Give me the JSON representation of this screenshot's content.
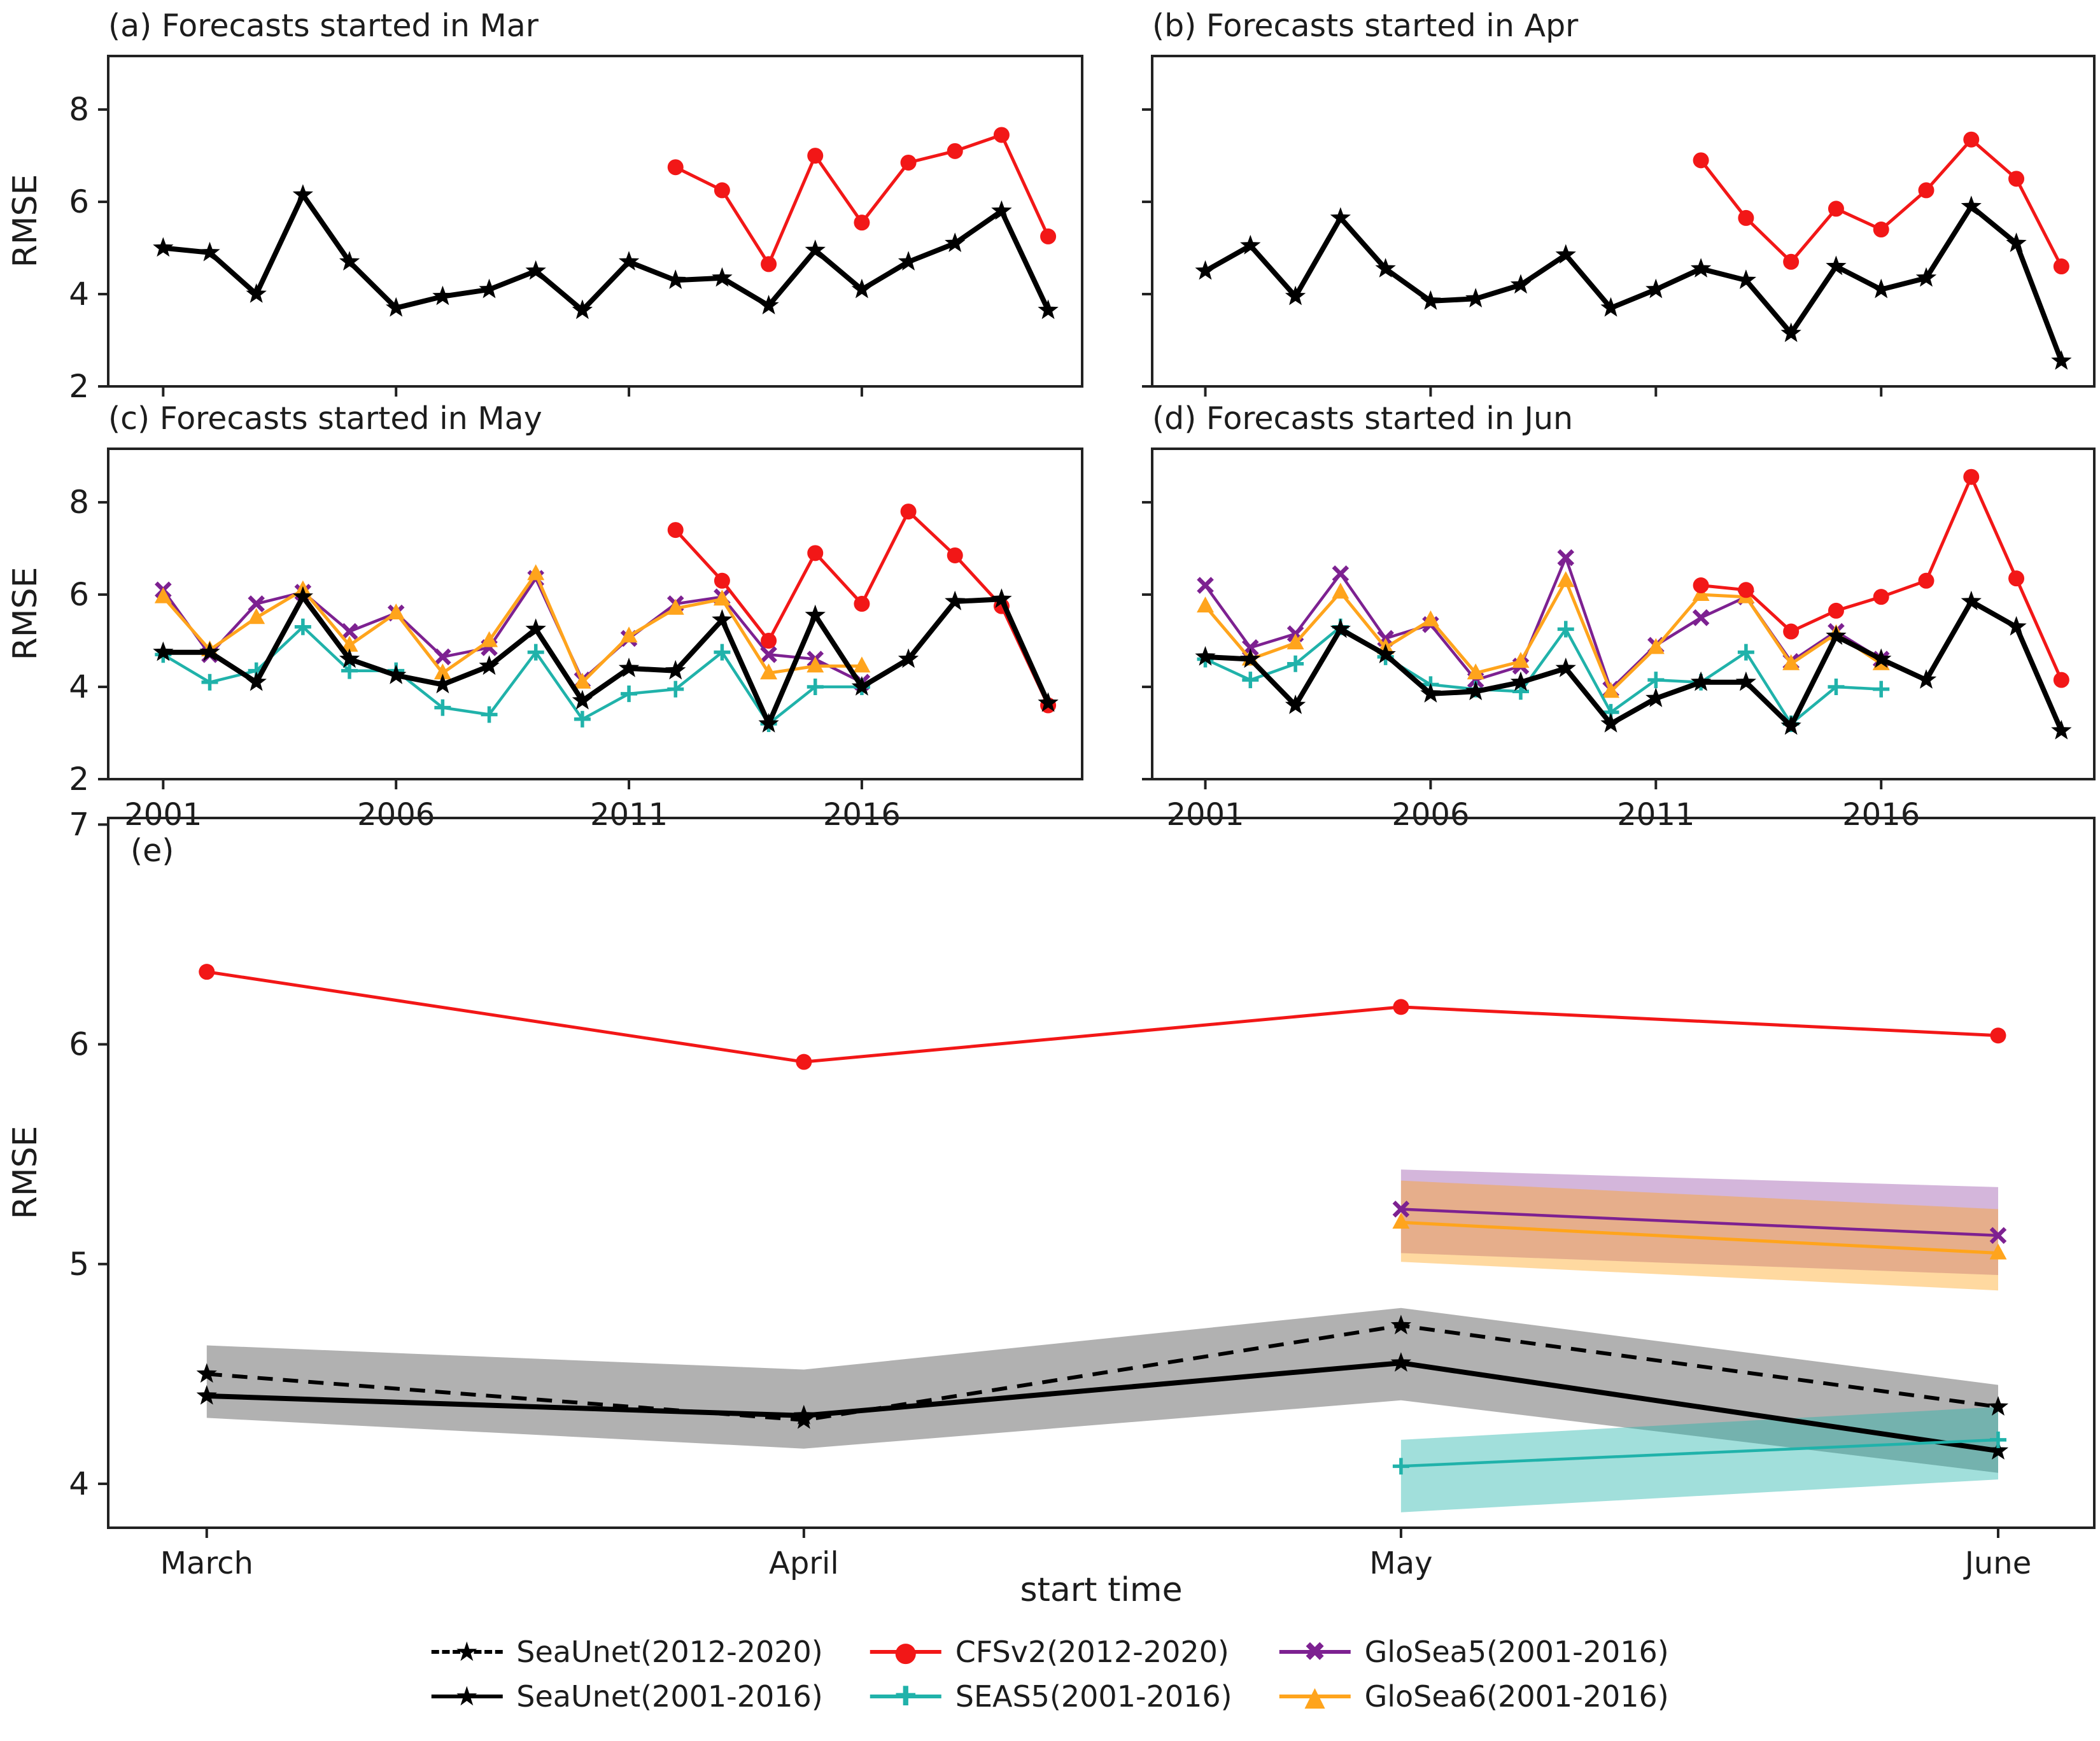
{
  "figure": {
    "ylabel": "RMSE",
    "background": "#ffffff",
    "axis_color": "#222222",
    "text_color": "#1c1c1c"
  },
  "chart_data": [
    {
      "id": "a",
      "type": "line",
      "title": "(a) Forecasts started in Mar",
      "ylim": [
        2,
        9.16
      ],
      "yticks": [
        2,
        4,
        6,
        8
      ],
      "xticks": [
        2001,
        2006,
        2011,
        2016
      ],
      "xtick_labels": [
        "2001",
        "2006",
        "2011",
        "2016"
      ],
      "show_xtick_labels": false,
      "show_ytick_labels": true,
      "series": [
        {
          "name": "CFSv2(2012-2020)",
          "color": "#f21717",
          "marker": "circle",
          "line": "solid",
          "width": 5,
          "x_start": 2012,
          "y": [
            6.75,
            6.25,
            4.65,
            7.0,
            5.55,
            6.85,
            7.1,
            7.45,
            5.25
          ]
        },
        {
          "name": "SeaUnet",
          "color": "#000000",
          "marker": "star",
          "line": "solid",
          "width": 8,
          "x_start": 2001,
          "y": [
            5.0,
            4.9,
            4.0,
            6.15,
            4.7,
            3.7,
            3.95,
            4.1,
            4.5,
            3.65,
            4.7,
            4.3,
            4.35,
            3.75,
            4.95,
            4.1,
            4.7,
            5.1,
            5.8,
            3.65
          ]
        }
      ]
    },
    {
      "id": "b",
      "type": "line",
      "title": "(b) Forecasts started in Apr",
      "ylim": [
        2,
        9.16
      ],
      "yticks": [
        2,
        4,
        6,
        8
      ],
      "xticks": [
        2001,
        2006,
        2011,
        2016
      ],
      "xtick_labels": [
        "2001",
        "2006",
        "2011",
        "2016"
      ],
      "show_xtick_labels": false,
      "show_ytick_labels": false,
      "series": [
        {
          "name": "CFSv2(2012-2020)",
          "color": "#f21717",
          "marker": "circle",
          "line": "solid",
          "width": 5,
          "x_start": 2012,
          "y": [
            6.9,
            5.65,
            4.7,
            5.85,
            5.4,
            6.25,
            7.35,
            6.5,
            4.6
          ]
        },
        {
          "name": "SeaUnet",
          "color": "#000000",
          "marker": "star",
          "line": "solid",
          "width": 8,
          "x_start": 2001,
          "y": [
            4.5,
            5.05,
            3.95,
            5.65,
            4.55,
            3.85,
            3.9,
            4.2,
            4.85,
            3.7,
            4.1,
            4.55,
            4.3,
            3.15,
            4.6,
            4.1,
            4.35,
            5.9,
            5.1,
            2.55
          ]
        }
      ]
    },
    {
      "id": "c",
      "type": "line",
      "title": "(c) Forecasts started in May",
      "ylim": [
        2,
        9.16
      ],
      "yticks": [
        2,
        4,
        6,
        8
      ],
      "xticks": [
        2001,
        2006,
        2011,
        2016
      ],
      "xtick_labels": [
        "2001",
        "2006",
        "2011",
        "2016"
      ],
      "show_xtick_labels": true,
      "show_ytick_labels": true,
      "series": [
        {
          "name": "GloSea5(2001-2016)",
          "color": "#7d2191",
          "marker": "x",
          "line": "solid",
          "width": 4.5,
          "x_start": 2001,
          "y": [
            6.1,
            4.7,
            5.8,
            6.05,
            5.2,
            5.6,
            4.65,
            4.85,
            6.35,
            4.15,
            5.05,
            5.8,
            5.95,
            4.7,
            4.6,
            4.1
          ]
        },
        {
          "name": "GloSea6(2001-2016)",
          "color": "#ffa41c",
          "marker": "triangle",
          "line": "solid",
          "width": 5,
          "x_start": 2001,
          "y": [
            5.95,
            4.8,
            5.5,
            6.1,
            4.9,
            5.6,
            4.3,
            5.0,
            6.45,
            4.1,
            5.1,
            5.7,
            5.9,
            4.3,
            4.45,
            4.45
          ]
        },
        {
          "name": "SEAS5(2001-2016)",
          "color": "#20b2aa",
          "marker": "plus",
          "line": "solid",
          "width": 4.5,
          "x_start": 2001,
          "y": [
            4.7,
            4.1,
            4.35,
            5.3,
            4.35,
            4.35,
            3.55,
            3.4,
            4.75,
            3.3,
            3.85,
            3.95,
            4.75,
            3.2,
            4.0,
            4.0
          ]
        },
        {
          "name": "CFSv2(2012-2020)",
          "color": "#f21717",
          "marker": "circle",
          "line": "solid",
          "width": 5,
          "x_start": 2012,
          "y": [
            7.4,
            6.3,
            5.0,
            6.9,
            5.8,
            7.8,
            6.85,
            5.75,
            3.6
          ]
        },
        {
          "name": "SeaUnet",
          "color": "#000000",
          "marker": "star",
          "line": "solid",
          "width": 8,
          "x_start": 2001,
          "y": [
            4.75,
            4.75,
            4.1,
            5.95,
            4.6,
            4.25,
            4.05,
            4.45,
            5.25,
            3.7,
            4.4,
            4.35,
            5.45,
            3.2,
            5.55,
            4.0,
            4.6,
            5.85,
            5.9,
            3.65
          ]
        }
      ]
    },
    {
      "id": "d",
      "type": "line",
      "title": "(d) Forecasts started in Jun",
      "ylim": [
        2,
        9.16
      ],
      "yticks": [
        2,
        4,
        6,
        8
      ],
      "xticks": [
        2001,
        2006,
        2011,
        2016
      ],
      "xtick_labels": [
        "2001",
        "2006",
        "2011",
        "2016"
      ],
      "show_xtick_labels": true,
      "show_ytick_labels": false,
      "series": [
        {
          "name": "GloSea5(2001-2016)",
          "color": "#7d2191",
          "marker": "x",
          "line": "solid",
          "width": 4.5,
          "x_start": 2001,
          "y": [
            6.2,
            4.85,
            5.15,
            6.45,
            5.05,
            5.35,
            4.15,
            4.45,
            6.8,
            3.95,
            4.9,
            5.5,
            5.95,
            4.55,
            5.2,
            4.6
          ]
        },
        {
          "name": "GloSea6(2001-2016)",
          "color": "#ffa41c",
          "marker": "triangle",
          "line": "solid",
          "width": 5,
          "x_start": 2001,
          "y": [
            5.75,
            4.6,
            4.95,
            6.05,
            4.85,
            5.45,
            4.3,
            4.55,
            6.3,
            3.9,
            4.85,
            6.0,
            5.95,
            4.5,
            5.15,
            4.5
          ]
        },
        {
          "name": "SEAS5(2001-2016)",
          "color": "#20b2aa",
          "marker": "plus",
          "line": "solid",
          "width": 4.5,
          "x_start": 2001,
          "y": [
            4.6,
            4.15,
            4.5,
            5.3,
            4.65,
            4.05,
            3.95,
            3.9,
            5.25,
            3.45,
            4.15,
            4.1,
            4.75,
            3.2,
            4.0,
            3.95
          ]
        },
        {
          "name": "CFSv2(2012-2020)",
          "color": "#f21717",
          "marker": "circle",
          "line": "solid",
          "width": 5,
          "x_start": 2012,
          "y": [
            6.2,
            6.1,
            5.2,
            5.65,
            5.95,
            6.3,
            8.55,
            6.35,
            4.15
          ]
        },
        {
          "name": "SeaUnet",
          "color": "#000000",
          "marker": "star",
          "line": "solid",
          "width": 8,
          "x_start": 2001,
          "y": [
            4.65,
            4.6,
            3.6,
            5.25,
            4.7,
            3.85,
            3.9,
            4.1,
            4.4,
            3.2,
            3.75,
            4.1,
            4.1,
            3.15,
            5.1,
            4.6,
            4.15,
            5.85,
            5.3,
            3.05
          ]
        }
      ]
    },
    {
      "id": "e",
      "type": "line",
      "title": "(e)",
      "xlabel": "start time",
      "categories": [
        "March",
        "April",
        "May",
        "June"
      ],
      "ylim": [
        3.8,
        7.03
      ],
      "yticks": [
        4,
        5,
        6,
        7
      ],
      "xticks": [
        0,
        1,
        2,
        3
      ],
      "xtick_labels": [
        "March",
        "April",
        "May",
        "June"
      ],
      "show_xtick_labels": true,
      "show_ytick_labels": true,
      "series": [
        {
          "name": "CFSv2(2012-2020)",
          "color": "#f21717",
          "marker": "circle",
          "line": "solid",
          "width": 5,
          "x": [
            0,
            1,
            2,
            3
          ],
          "y": [
            6.33,
            5.92,
            6.17,
            6.04
          ]
        },
        {
          "name": "SeaUnet(2012-2020)",
          "color": "#000000",
          "marker": "star",
          "line": "dashed",
          "width": 6,
          "x": [
            0,
            1,
            2,
            3
          ],
          "y": [
            4.5,
            4.29,
            4.72,
            4.35
          ],
          "band": {
            "upper": [
              4.63,
              4.52,
              4.8,
              4.45
            ],
            "lower": [
              4.3,
              4.16,
              4.38,
              4.05
            ],
            "color": "#333333",
            "opacity": 0.38
          }
        },
        {
          "name": "SeaUnet(2001-2016)",
          "color": "#000000",
          "marker": "star",
          "line": "solid",
          "width": 8,
          "x": [
            0,
            1,
            2,
            3
          ],
          "y": [
            4.4,
            4.31,
            4.55,
            4.15
          ]
        },
        {
          "name": "GloSea5(2001-2016)",
          "color": "#7d2191",
          "marker": "x",
          "line": "solid",
          "width": 4.5,
          "x": [
            2,
            3
          ],
          "y": [
            5.25,
            5.13
          ],
          "band": {
            "upper": [
              5.43,
              5.35
            ],
            "lower": [
              5.05,
              4.95
            ],
            "color": "#7d2191",
            "opacity": 0.33
          }
        },
        {
          "name": "GloSea6(2001-2016)",
          "color": "#ffa41c",
          "marker": "triangle",
          "line": "solid",
          "width": 5,
          "x": [
            2,
            3
          ],
          "y": [
            5.19,
            5.05
          ],
          "band": {
            "upper": [
              5.38,
              5.25
            ],
            "lower": [
              5.01,
              4.88
            ],
            "color": "#ffa41c",
            "opacity": 0.42
          }
        },
        {
          "name": "SEAS5(2001-2016)",
          "color": "#20b2aa",
          "marker": "plus",
          "line": "solid",
          "width": 4.5,
          "x": [
            2,
            3
          ],
          "y": [
            4.08,
            4.2
          ],
          "band": {
            "upper": [
              4.2,
              4.35
            ],
            "lower": [
              3.87,
              4.02
            ],
            "color": "#20b2aa",
            "opacity": 0.42
          }
        }
      ]
    }
  ],
  "legend": {
    "items": [
      {
        "label": "SeaUnet(2012-2020)",
        "marker": "star",
        "glyph": "★",
        "line": "dashed",
        "color": "#000000"
      },
      {
        "label": "CFSv2(2012-2020)",
        "marker": "circle",
        "glyph": "●",
        "line": "solid",
        "color": "#f21717"
      },
      {
        "label": "GloSea5(2001-2016)",
        "marker": "x",
        "glyph": "✖",
        "line": "solid",
        "color": "#7d2191"
      },
      {
        "label": "SeaUnet(2001-2016)",
        "marker": "star",
        "glyph": "★",
        "line": "solid",
        "color": "#000000"
      },
      {
        "label": "SEAS5(2001-2016)",
        "marker": "plus",
        "glyph": "✚",
        "line": "solid",
        "color": "#20b2aa"
      },
      {
        "label": "GloSea6(2001-2016)",
        "marker": "triangle",
        "glyph": "▲",
        "line": "solid",
        "color": "#ffa41c"
      }
    ]
  }
}
